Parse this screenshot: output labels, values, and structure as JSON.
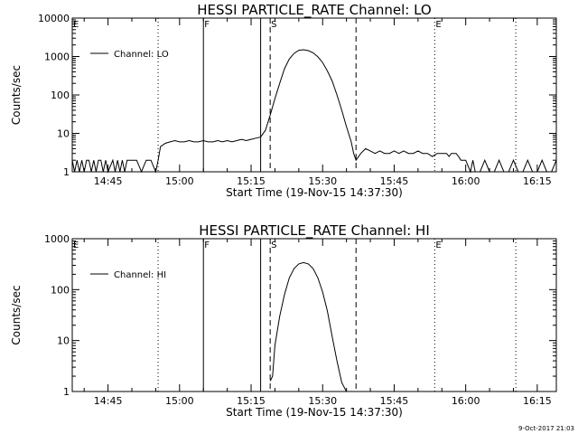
{
  "timestamp": "9-Oct-2017 21:03",
  "chart_data": [
    {
      "type": "line",
      "title": "HESSI PARTICLE_RATE Channel: LO",
      "xlabel": "Start Time (19-Nov-15 14:37:30)",
      "ylabel": "Counts/sec",
      "xlim": [
        "14:37:30",
        "16:19:00"
      ],
      "ylim": [
        1,
        10000
      ],
      "yscale": "log",
      "x_ticks": [
        "14:45",
        "15:00",
        "15:15",
        "15:30",
        "15:45",
        "16:00",
        "16:15"
      ],
      "y_ticks": [
        "1",
        "10",
        "100",
        "1000",
        "10000"
      ],
      "legend": {
        "position": "top-left",
        "label": "Channel: LO"
      },
      "markers": [
        {
          "label": "E",
          "time": "14:37:30",
          "style": "none"
        },
        {
          "label": "",
          "time": "14:55:30",
          "style": "dotted"
        },
        {
          "label": "F",
          "time": "15:05:00",
          "style": "solid"
        },
        {
          "label": "",
          "time": "15:17:00",
          "style": "solid"
        },
        {
          "label": "S",
          "time": "15:19:00",
          "style": "dashed"
        },
        {
          "label": "",
          "time": "15:37:00",
          "style": "dashed"
        },
        {
          "label": "E",
          "time": "15:53:30",
          "style": "dotted"
        },
        {
          "label": "",
          "time": "16:10:30",
          "style": "dotted"
        }
      ],
      "series": [
        {
          "x": [
            "14:37:30",
            "14:38:00",
            "14:38:30",
            "14:39:00",
            "14:39:30",
            "14:40:00",
            "14:40:30",
            "14:41:00",
            "14:41:30",
            "14:42:00",
            "14:42:30",
            "14:43:00",
            "14:43:30",
            "14:44:00",
            "14:44:30",
            "14:45:00",
            "14:46:00",
            "14:46:30",
            "14:47:00",
            "14:47:30",
            "14:48:00",
            "14:48:30",
            "14:49:00",
            "14:50:00",
            "14:51:00",
            "14:52:00",
            "14:53:00",
            "14:54:00",
            "14:55:00",
            "14:55:30",
            "14:56:00",
            "14:57:00",
            "14:58:00",
            "14:59:00",
            "15:00:00",
            "15:01:00",
            "15:02:00",
            "15:03:00",
            "15:04:00",
            "15:05:00",
            "15:06:00",
            "15:07:00",
            "15:08:00",
            "15:09:00",
            "15:10:00",
            "15:11:00",
            "15:12:00",
            "15:13:00",
            "15:14:00",
            "15:15:00",
            "15:16:00",
            "15:17:00",
            "15:18:00",
            "15:19:00",
            "15:20:00",
            "15:21:00",
            "15:22:00",
            "15:23:00",
            "15:24:00",
            "15:25:00",
            "15:26:00",
            "15:27:00",
            "15:28:00",
            "15:29:00",
            "15:30:00",
            "15:31:00",
            "15:32:00",
            "15:33:00",
            "15:34:00",
            "15:35:00",
            "15:36:00",
            "15:36:30",
            "15:37:00",
            "15:38:00",
            "15:39:00",
            "15:40:00",
            "15:41:00",
            "15:42:00",
            "15:43:00",
            "15:44:00",
            "15:45:00",
            "15:46:00",
            "15:47:00",
            "15:48:00",
            "15:49:00",
            "15:50:00",
            "15:51:00",
            "15:52:00",
            "15:53:00",
            "15:54:00",
            "15:55:00",
            "15:55:30",
            "15:56:00",
            "15:56:30",
            "15:57:00",
            "15:58:00",
            "15:58:30",
            "15:59:00",
            "16:00:00",
            "16:01:00",
            "16:01:30",
            "16:02:00",
            "16:03:00",
            "16:04:00",
            "16:05:00",
            "16:06:00",
            "16:07:00",
            "16:08:00",
            "16:09:00",
            "16:10:00",
            "16:11:00",
            "16:12:00",
            "16:13:00",
            "16:14:00",
            "16:15:00",
            "16:16:00",
            "16:17:00",
            "16:18:00",
            "16:19:00"
          ],
          "y": [
            2,
            1,
            2,
            1,
            2,
            1,
            2,
            2,
            1,
            2,
            1,
            2,
            2,
            1,
            2,
            1,
            2,
            1,
            2,
            1,
            2,
            1,
            2,
            2,
            2,
            1,
            2,
            2,
            1,
            2,
            4.5,
            5.5,
            6,
            6.5,
            6,
            6,
            6.5,
            6,
            6,
            6.5,
            6,
            6,
            6.5,
            6,
            6.5,
            6,
            6.5,
            7,
            6.5,
            7,
            7.5,
            8,
            12,
            30,
            80,
            200,
            480,
            860,
            1200,
            1450,
            1500,
            1420,
            1250,
            980,
            700,
            420,
            230,
            100,
            40,
            15,
            6,
            3,
            2,
            3,
            4,
            3.5,
            3,
            3.5,
            3,
            3,
            3.5,
            3,
            3.5,
            3,
            3,
            3.5,
            3,
            3,
            2.5,
            3,
            3,
            3,
            3,
            2.5,
            3,
            3,
            2.5,
            2,
            2,
            1,
            2,
            1,
            1,
            2,
            1,
            1,
            2,
            1,
            1,
            2,
            1,
            1,
            2,
            1,
            1,
            2,
            1,
            1,
            2
          ]
        }
      ]
    },
    {
      "type": "line",
      "title": "HESSI PARTICLE_RATE Channel: HI",
      "xlabel": "Start Time (19-Nov-15 14:37:30)",
      "ylabel": "Counts/sec",
      "xlim": [
        "14:37:30",
        "16:19:00"
      ],
      "ylim": [
        1,
        1000
      ],
      "yscale": "log",
      "x_ticks": [
        "14:45",
        "15:00",
        "15:15",
        "15:30",
        "15:45",
        "16:00",
        "16:15"
      ],
      "y_ticks": [
        "1",
        "10",
        "100",
        "1000"
      ],
      "legend": {
        "position": "top-left",
        "label": "Channel: HI"
      },
      "markers": [
        {
          "label": "E",
          "time": "14:37:30",
          "style": "none"
        },
        {
          "label": "",
          "time": "14:55:30",
          "style": "dotted"
        },
        {
          "label": "F",
          "time": "15:05:00",
          "style": "solid"
        },
        {
          "label": "",
          "time": "15:17:00",
          "style": "solid"
        },
        {
          "label": "S",
          "time": "15:19:00",
          "style": "dashed"
        },
        {
          "label": "",
          "time": "15:37:00",
          "style": "dashed"
        },
        {
          "label": "E",
          "time": "15:53:30",
          "style": "dotted"
        },
        {
          "label": "",
          "time": "16:10:30",
          "style": "dotted"
        }
      ],
      "series": [
        {
          "x": [
            "15:19:00",
            "15:19:30",
            "15:20:00",
            "15:21:00",
            "15:22:00",
            "15:23:00",
            "15:24:00",
            "15:25:00",
            "15:26:00",
            "15:27:00",
            "15:28:00",
            "15:29:00",
            "15:30:00",
            "15:31:00",
            "15:32:00",
            "15:33:00",
            "15:34:00",
            "15:35:00"
          ],
          "y": [
            1.6,
            2,
            8,
            30,
            80,
            170,
            260,
            320,
            340,
            320,
            260,
            170,
            90,
            38,
            12,
            4,
            1.5,
            1
          ]
        }
      ]
    }
  ]
}
